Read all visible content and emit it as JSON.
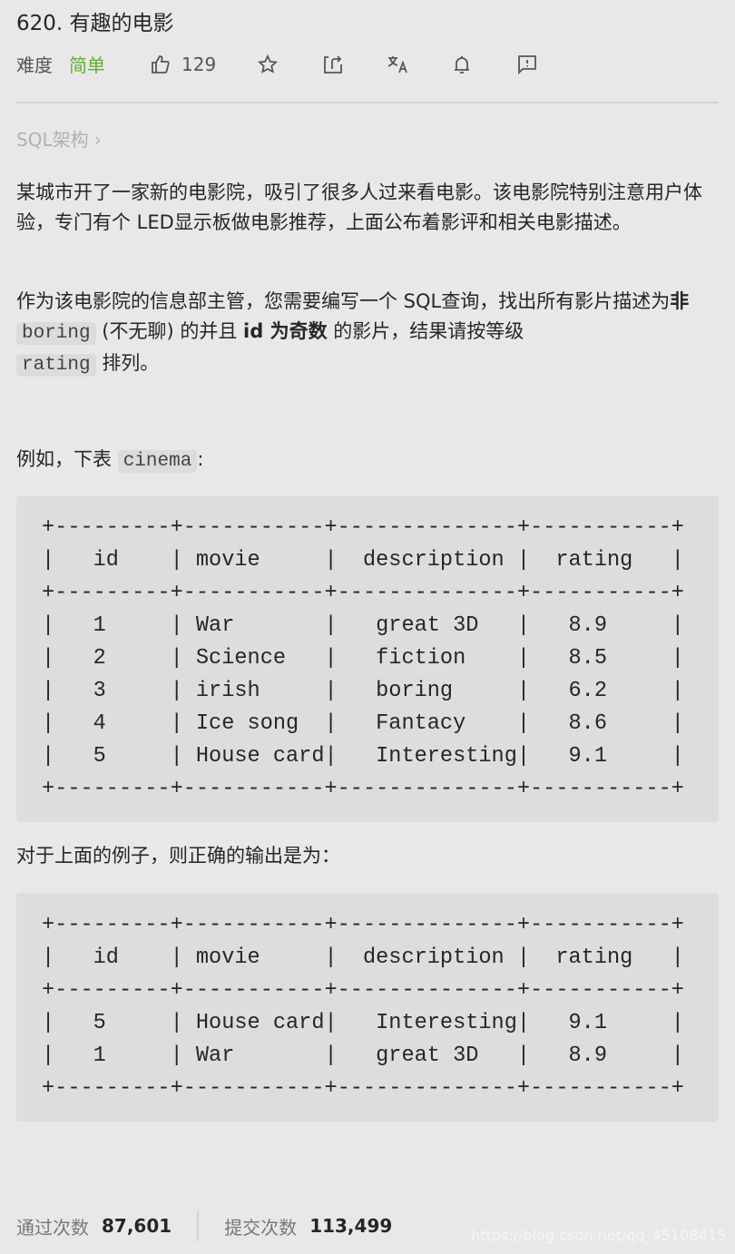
{
  "title": "620. 有趣的电影",
  "difficulty_label": "难度",
  "difficulty": "简单",
  "likes": "129",
  "icons": [
    "thumbs-up-icon",
    "star-icon",
    "share-icon",
    "translate-icon",
    "bell-icon",
    "feedback-icon"
  ],
  "breadcrumb": "SQL架构 ›",
  "para1": "某城市开了一家新的电影院，吸引了很多人过来看电影。该电影院特别注意用户体验，专门有个 LED显示板做电影推荐，上面公布着影评和相关电影描述。",
  "para2": {
    "a": "作为该电影院的信息部主管，您需要编写一个 SQL查询，找出所有影片描述为",
    "b": "非",
    "c": "boring",
    "d": " (不无聊) 的并且 ",
    "e": "id 为奇数",
    "f": " 的影片，结果请按等级 ",
    "g": "rating",
    "h": " 排列。"
  },
  "para3": {
    "a": "例如，下表 ",
    "b": "cinema",
    "c": ":"
  },
  "table1": [
    "+---------+-----------+--------------+-----------+",
    "|   id    | movie     |  description |  rating   |",
    "+---------+-----------+--------------+-----------+",
    "|   1     | War       |   great 3D   |   8.9     |",
    "|   2     | Science   |   fiction    |   8.5     |",
    "|   3     | irish     |   boring     |   6.2     |",
    "|   4     | Ice song  |   Fantacy    |   8.6     |",
    "|   5     | House card|   Interesting|   9.1     |",
    "+---------+-----------+--------------+-----------+"
  ],
  "para4": "对于上面的例子，则正确的输出是为：",
  "table2": [
    "+---------+-----------+--------------+-----------+",
    "|   id    | movie     |  description |  rating   |",
    "+---------+-----------+--------------+-----------+",
    "|   5     | House card|   Interesting|   9.1     |",
    "|   1     | War       |   great 3D   |   8.9     |",
    "+---------+-----------+--------------+-----------+"
  ],
  "stats": {
    "accepted_label": "通过次数",
    "accepted": "87,601",
    "submitted_label": "提交次数",
    "submitted": "113,499"
  },
  "watermark": "https://blog.csdn.net/qq_45108415"
}
